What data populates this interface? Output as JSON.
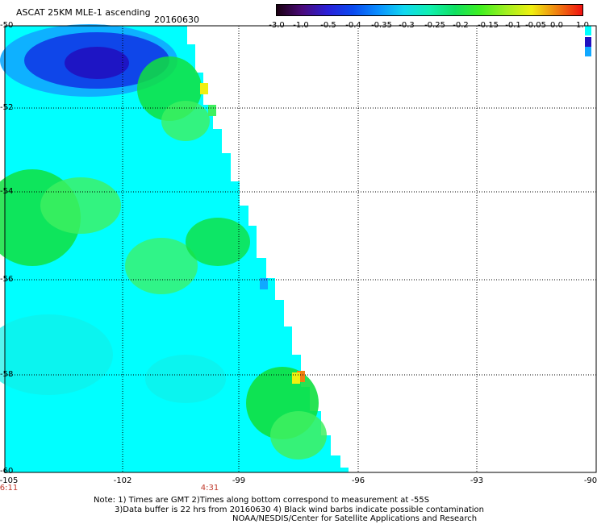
{
  "title": "ASCAT 25KM MLE-1 ascending",
  "date": "20160630",
  "colorbar": {
    "tick_labels": [
      "-3.0",
      "-1.0",
      "-0.5",
      "-0.4",
      "-0.35",
      "-0.3",
      "-0.25",
      "-0.2",
      "-0.15",
      "-0.1",
      "-0.05",
      "0.0",
      "1.0"
    ],
    "colors": [
      "#1a0010",
      "#4b0a7a",
      "#2a20d8",
      "#0a4af0",
      "#0a90ff",
      "#10d8f0",
      "#10f0b0",
      "#10e060",
      "#40f020",
      "#a0f020",
      "#f0f010",
      "#f08010",
      "#f01010"
    ]
  },
  "axes": {
    "lat_labels": [
      "-50",
      "-52",
      "-54",
      "-56",
      "-58",
      "-60"
    ],
    "lon_labels": [
      "-105",
      "-102",
      "-99",
      "-96",
      "-93",
      "-90"
    ],
    "time_labels": [
      "6:11",
      "4:31"
    ]
  },
  "notes": [
    "Note: 1) Times are GMT 2)Times along bottom correspond to measurement at -55S",
    "3)Data buffer is 22 hrs from 20160630 4) Black wind barbs indicate possible contamination",
    "NOAA/NESDIS/Center for Satellite Applications and Research"
  ],
  "colors": {
    "cyan": "#00ffff",
    "light_cyan": "#10f0e8",
    "green": "#10e040",
    "light_green": "#40f060",
    "blue": "#1040e8",
    "deep_blue": "#2010c0",
    "sky": "#10a8ff",
    "yellow": "#f0f010",
    "orange": "#f08010",
    "time_label": "#c0392b"
  }
}
